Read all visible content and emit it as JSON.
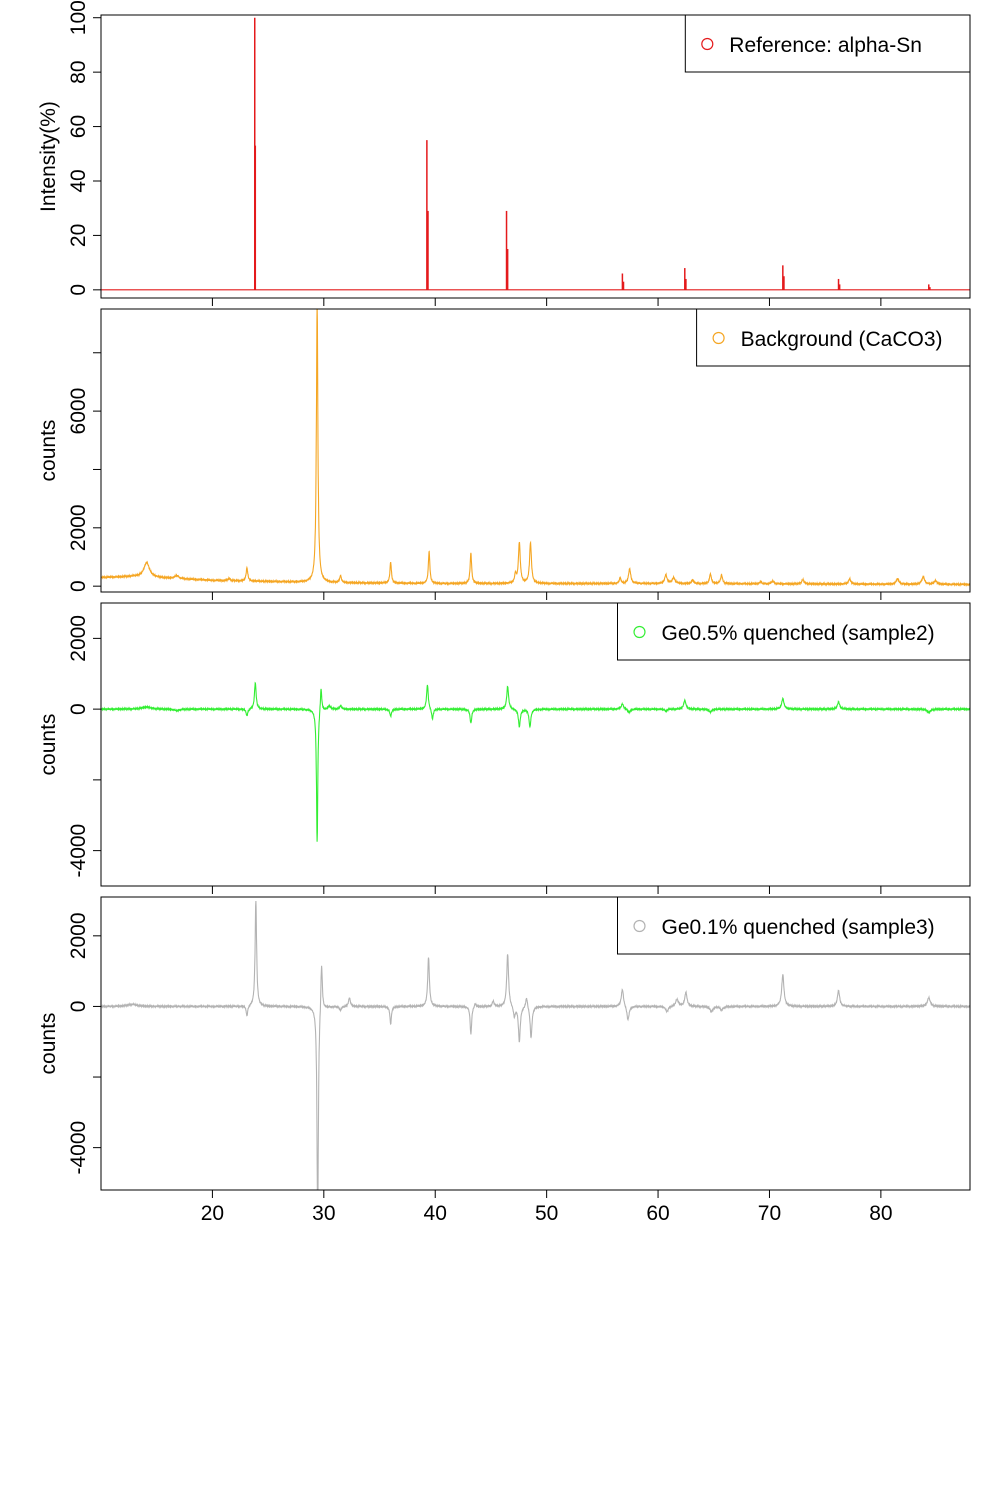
{
  "chart_data": [
    {
      "type": "line",
      "ylabel": "Intensity(%)",
      "xlim": [
        10,
        88
      ],
      "ylim": [
        -3,
        101
      ],
      "yticks": [
        0,
        20,
        40,
        60,
        80,
        100
      ],
      "legend": {
        "label": "Reference: alpha-Sn",
        "position": "top-right"
      },
      "color": "#e41a1c",
      "series": [
        {
          "name": "Reference: alpha-Sn",
          "style": "stick",
          "baseline": 0,
          "x": [
            23.8,
            23.85,
            39.25,
            39.35,
            46.4,
            46.5,
            56.8,
            56.9,
            62.4,
            62.5,
            71.2,
            71.3,
            76.2,
            76.3,
            84.3,
            84.4
          ],
          "values": [
            100,
            53,
            55,
            29,
            29,
            15,
            6,
            3,
            8,
            4,
            9,
            5,
            4,
            2,
            2,
            1
          ]
        }
      ]
    },
    {
      "type": "line",
      "ylabel": "counts",
      "xlim": [
        10,
        88
      ],
      "ylim": [
        -200,
        9500
      ],
      "yticks": [
        0,
        2000,
        4000,
        6000,
        8000
      ],
      "ytick_labels": [
        "0",
        "2000",
        "",
        "6000",
        ""
      ],
      "legend": {
        "label": "Background (CaCO3)",
        "position": "top-right"
      },
      "color": "#f5a623",
      "series": [
        {
          "name": "Background (CaCO3)",
          "baseline_points": [
            [
              10,
              300
            ],
            [
              13,
              330
            ],
            [
              20,
              200
            ],
            [
              30,
              120
            ],
            [
              40,
              90
            ],
            [
              60,
              90
            ],
            [
              88,
              60
            ]
          ],
          "peaks": [
            [
              14.1,
              500,
              0.3
            ],
            [
              16.8,
              100,
              0.2
            ],
            [
              21.5,
              80,
              0.1
            ],
            [
              23.1,
              450,
              0.09
            ],
            [
              29.4,
              9500,
              0.08
            ],
            [
              31.5,
              230,
              0.09
            ],
            [
              36.0,
              720,
              0.08
            ],
            [
              39.45,
              1100,
              0.08
            ],
            [
              43.2,
              1050,
              0.08
            ],
            [
              47.2,
              300,
              0.09
            ],
            [
              47.55,
              1400,
              0.1
            ],
            [
              48.55,
              1400,
              0.1
            ],
            [
              56.6,
              200,
              0.08
            ],
            [
              57.45,
              500,
              0.12
            ],
            [
              60.7,
              300,
              0.12
            ],
            [
              61.4,
              200,
              0.15
            ],
            [
              63.1,
              130,
              0.1
            ],
            [
              64.7,
              330,
              0.1
            ],
            [
              65.7,
              300,
              0.1
            ],
            [
              69.2,
              80,
              0.1
            ],
            [
              70.3,
              100,
              0.12
            ],
            [
              73.0,
              150,
              0.12
            ],
            [
              77.2,
              180,
              0.12
            ],
            [
              81.5,
              180,
              0.15
            ],
            [
              83.8,
              250,
              0.15
            ],
            [
              84.9,
              120,
              0.15
            ]
          ]
        }
      ]
    },
    {
      "type": "line",
      "ylabel": "counts",
      "xlim": [
        10,
        88
      ],
      "ylim": [
        -5000,
        3000
      ],
      "yticks": [
        -4000,
        -2000,
        0,
        2000
      ],
      "ytick_labels": [
        "-4000",
        "",
        "0",
        "2000"
      ],
      "legend": {
        "label": "Ge0.5% quenched (sample2)",
        "position": "top-right"
      },
      "color": "#33ee33",
      "series": [
        {
          "name": "Ge0.5% quenched (sample2)",
          "baseline_points": [
            [
              10,
              0
            ],
            [
              88,
              0
            ]
          ],
          "peaks": [
            [
              14.1,
              60,
              0.5
            ],
            [
              16.8,
              -40,
              0.3
            ],
            [
              23.1,
              -200,
              0.09
            ],
            [
              23.85,
              750,
              0.09
            ],
            [
              29.4,
              -3800,
              0.07
            ],
            [
              29.75,
              700,
              0.08
            ],
            [
              30.5,
              100,
              0.15
            ],
            [
              31.5,
              100,
              0.1
            ],
            [
              36.0,
              -200,
              0.09
            ],
            [
              39.3,
              700,
              0.09
            ],
            [
              39.75,
              -300,
              0.09
            ],
            [
              43.2,
              -400,
              0.09
            ],
            [
              46.5,
              650,
              0.1
            ],
            [
              47.55,
              -500,
              0.1
            ],
            [
              48.5,
              -500,
              0.1
            ],
            [
              56.8,
              150,
              0.12
            ],
            [
              57.4,
              -100,
              0.12
            ],
            [
              60.7,
              -60,
              0.12
            ],
            [
              62.4,
              250,
              0.12
            ],
            [
              64.7,
              -80,
              0.15
            ],
            [
              71.2,
              300,
              0.12
            ],
            [
              76.2,
              200,
              0.12
            ],
            [
              84.3,
              -100,
              0.15
            ]
          ]
        }
      ]
    },
    {
      "type": "line",
      "ylabel": "counts",
      "xlim": [
        10,
        88
      ],
      "ylim": [
        -5200,
        3100
      ],
      "yticks": [
        -4000,
        -2000,
        0,
        2000
      ],
      "ytick_labels": [
        "-4000",
        "",
        "0",
        "2000"
      ],
      "xticks": [
        20,
        30,
        40,
        50,
        60,
        70,
        80
      ],
      "legend": {
        "label": "Ge0.1% quenched (sample3)",
        "position": "top-right"
      },
      "color": "#b3b3b3",
      "series": [
        {
          "name": "Ge0.1% quenched (sample3)",
          "baseline_points": [
            [
              10,
              0
            ],
            [
              88,
              0
            ]
          ],
          "peaks": [
            [
              12.8,
              60,
              0.5
            ],
            [
              23.1,
              -300,
              0.08
            ],
            [
              23.9,
              3000,
              0.08
            ],
            [
              29.45,
              -6500,
              0.07
            ],
            [
              29.8,
              1400,
              0.08
            ],
            [
              31.5,
              -100,
              0.12
            ],
            [
              32.3,
              250,
              0.1
            ],
            [
              36.0,
              -500,
              0.08
            ],
            [
              39.4,
              1400,
              0.09
            ],
            [
              43.2,
              -800,
              0.08
            ],
            [
              43.6,
              100,
              0.1
            ],
            [
              45.2,
              150,
              0.1
            ],
            [
              46.5,
              1500,
              0.1
            ],
            [
              47.1,
              -300,
              0.1
            ],
            [
              47.55,
              -1000,
              0.1
            ],
            [
              48.2,
              300,
              0.1
            ],
            [
              48.6,
              -900,
              0.1
            ],
            [
              56.8,
              500,
              0.12
            ],
            [
              57.3,
              -400,
              0.12
            ],
            [
              60.8,
              -150,
              0.15
            ],
            [
              61.7,
              200,
              0.15
            ],
            [
              62.5,
              400,
              0.12
            ],
            [
              64.8,
              -150,
              0.15
            ],
            [
              65.7,
              -100,
              0.15
            ],
            [
              71.2,
              900,
              0.12
            ],
            [
              76.2,
              450,
              0.12
            ],
            [
              84.3,
              250,
              0.15
            ]
          ]
        }
      ]
    }
  ]
}
